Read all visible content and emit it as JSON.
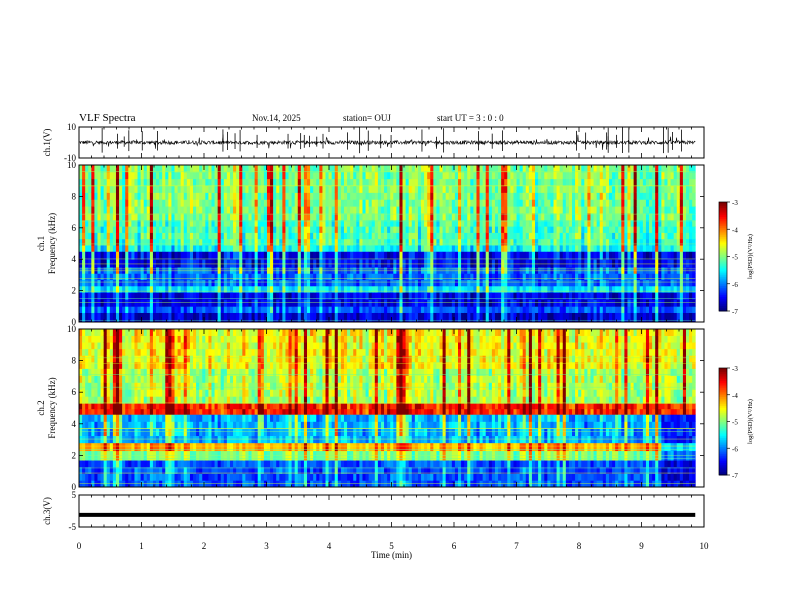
{
  "header": {
    "title": "VLF Spectra",
    "date": "Nov.14, 2025",
    "station": "station= OUJ",
    "start": "start  UT =   3 : 0  : 0"
  },
  "chart_data": [
    {
      "type": "line",
      "panel": "ch1-waveform",
      "ylabel": "ch.1(V)",
      "ylim": [
        -10,
        10
      ],
      "yticks": [
        "10",
        "-10"
      ],
      "xlim": [
        0,
        10
      ],
      "baseline": 0,
      "color": "#000000"
    },
    {
      "type": "heatmap",
      "panel": "ch1-spectrogram",
      "ylabel": "ch.1 Frequency (kHz)",
      "ylim": [
        0,
        10
      ],
      "yticks": [
        "0",
        "2",
        "4",
        "6",
        "8",
        "10"
      ],
      "xlim": [
        0,
        10
      ],
      "bands_khz": [
        {
          "from": 0,
          "to": 0.6,
          "level": 0.08
        },
        {
          "from": 0.6,
          "to": 1.0,
          "level": 0.2
        },
        {
          "from": 1.0,
          "to": 1.9,
          "level": 0.1
        },
        {
          "from": 1.9,
          "to": 2.3,
          "level": 0.35
        },
        {
          "from": 2.3,
          "to": 3.5,
          "level": 0.22
        },
        {
          "from": 3.5,
          "to": 4.5,
          "level": 0.12
        },
        {
          "from": 4.5,
          "to": 4.9,
          "level": 0.38
        },
        {
          "from": 4.9,
          "to": 6.5,
          "level": 0.45
        },
        {
          "from": 6.5,
          "to": 10,
          "level": 0.5
        }
      ],
      "colorbar": {
        "label": "log(PSD)(V²/Hz)",
        "range": [
          -7,
          -3
        ],
        "ticks": [
          "-3",
          "-4",
          "-5",
          "-6",
          "-7"
        ]
      }
    },
    {
      "type": "heatmap",
      "panel": "ch2-spectrogram",
      "ylabel": "ch.2 Frequency (kHz)",
      "ylim": [
        0,
        10
      ],
      "yticks": [
        "0",
        "2",
        "4",
        "6",
        "8",
        "10"
      ],
      "xlim": [
        0,
        10
      ],
      "bands_khz": [
        {
          "from": 0,
          "to": 1.7,
          "level": 0.2
        },
        {
          "from": 1.7,
          "to": 2.3,
          "level": 0.5
        },
        {
          "from": 2.3,
          "to": 2.8,
          "level": 0.7
        },
        {
          "from": 2.8,
          "to": 4.6,
          "level": 0.3
        },
        {
          "from": 4.6,
          "to": 5.3,
          "level": 0.85
        },
        {
          "from": 5.3,
          "to": 7.5,
          "level": 0.55
        },
        {
          "from": 7.5,
          "to": 10,
          "level": 0.62
        }
      ],
      "colorbar": {
        "label": "log(PSD)(V²/Hz)",
        "range": [
          -7,
          -3
        ],
        "ticks": [
          "-3",
          "-4",
          "-5",
          "-6",
          "-7"
        ]
      }
    },
    {
      "type": "line",
      "panel": "ch3-waveform",
      "ylabel": "ch.3(V)",
      "ylim": [
        -5,
        5
      ],
      "yticks": [
        "5",
        "-5"
      ],
      "xlim": [
        0,
        10
      ],
      "value": -1.2,
      "color": "#000000"
    }
  ],
  "x_axis": {
    "label": "Time  (min)",
    "ticks": [
      "0",
      "1",
      "2",
      "3",
      "4",
      "5",
      "6",
      "7",
      "8",
      "9",
      "10"
    ]
  },
  "colormap": [
    "#00007f",
    "#0000ff",
    "#0080ff",
    "#00ffff",
    "#80ff80",
    "#ffff00",
    "#ff8000",
    "#ff0000",
    "#7f0000"
  ]
}
